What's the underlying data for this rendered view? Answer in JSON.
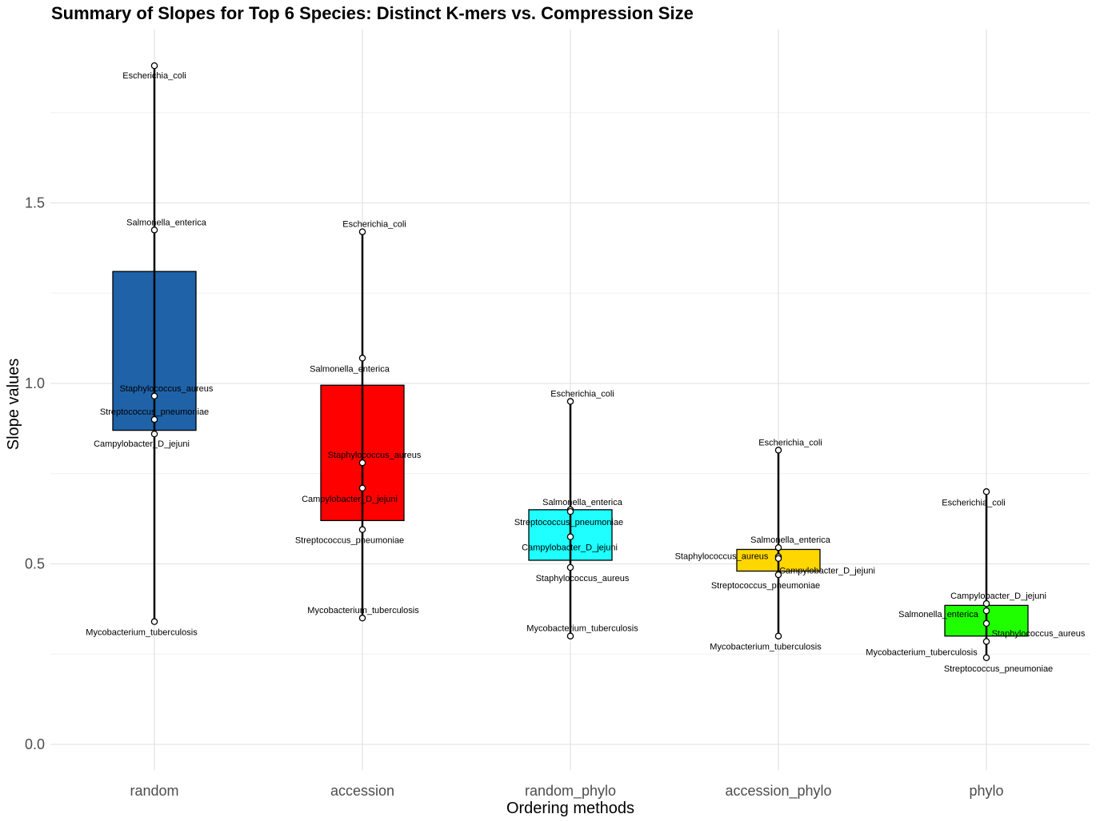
{
  "chart_data": {
    "type": "box",
    "title": "Summary of Slopes for Top 6 Species: Distinct K-mers vs. Compression Size",
    "xlabel": "Ordering methods",
    "ylabel": "Slope values",
    "categories": [
      "random",
      "accession",
      "random_phylo",
      "accession_phylo",
      "phylo"
    ],
    "ylim": [
      -0.07,
      1.98
    ],
    "yticks": [
      0.0,
      0.5,
      1.0,
      1.5
    ],
    "ytick_labels": [
      "0.0",
      "0.5",
      "1.0",
      "1.5"
    ],
    "grid": true,
    "box_colors": [
      "#1f62a8",
      "#ff0000",
      "#1fffff",
      "#ffd700",
      "#1fff00"
    ],
    "boxes": [
      {
        "category": "random",
        "min": 0.34,
        "q1": 0.87,
        "q3": 1.31,
        "max": 1.88
      },
      {
        "category": "accession",
        "min": 0.35,
        "q1": 0.62,
        "q3": 0.995,
        "max": 1.42
      },
      {
        "category": "random_phylo",
        "min": 0.3,
        "q1": 0.51,
        "q3": 0.65,
        "max": 0.95
      },
      {
        "category": "accession_phylo",
        "min": 0.3,
        "q1": 0.48,
        "q3": 0.54,
        "max": 0.815
      },
      {
        "category": "phylo",
        "min": 0.24,
        "q1": 0.3,
        "q3": 0.385,
        "max": 0.7
      }
    ],
    "points": [
      {
        "category": "random",
        "species": "Escherichia_coli",
        "value": 1.88,
        "label_dx": 0,
        "label_dy": 12
      },
      {
        "category": "random",
        "species": "Salmonella_enterica",
        "value": 1.425,
        "label_dx": 15,
        "label_dy": -10
      },
      {
        "category": "random",
        "species": "Staphylococcus_aureus",
        "value": 0.965,
        "label_dx": 15,
        "label_dy": -10
      },
      {
        "category": "random",
        "species": "Streptococcus_pneumoniae",
        "value": 0.9,
        "label_dx": 0,
        "label_dy": -10
      },
      {
        "category": "random",
        "species": "Campylobacter_D_jejuni",
        "value": 0.86,
        "label_dx": -16,
        "label_dy": 12
      },
      {
        "category": "random",
        "species": "Mycobacterium_tuberculosis",
        "value": 0.34,
        "label_dx": -16,
        "label_dy": 13
      },
      {
        "category": "accession",
        "species": "Escherichia_coli",
        "value": 1.42,
        "label_dx": 15,
        "label_dy": -10
      },
      {
        "category": "accession",
        "species": "Salmonella_enterica",
        "value": 1.07,
        "label_dx": -16,
        "label_dy": 13
      },
      {
        "category": "accession",
        "species": "Staphylococcus_aureus",
        "value": 0.78,
        "label_dx": 15,
        "label_dy": -10
      },
      {
        "category": "accession",
        "species": "Campylobacter_D_jejuni",
        "value": 0.71,
        "label_dx": -16,
        "label_dy": 13
      },
      {
        "category": "accession",
        "species": "Streptococcus_pneumoniae",
        "value": 0.595,
        "label_dx": -16,
        "label_dy": 13
      },
      {
        "category": "accession",
        "species": "Mycobacterium_tuberculosis",
        "value": 0.35,
        "label_dx": 1,
        "label_dy": -10
      },
      {
        "category": "random_phylo",
        "species": "Escherichia_coli",
        "value": 0.95,
        "label_dx": 15,
        "label_dy": -10
      },
      {
        "category": "random_phylo",
        "species": "Salmonella_enterica",
        "value": 0.65,
        "label_dx": 15,
        "label_dy": -10
      },
      {
        "category": "random_phylo",
        "species": "Streptococcus_pneumoniae",
        "value": 0.645,
        "label_dx": -2,
        "label_dy": 13
      },
      {
        "category": "random_phylo",
        "species": "Campylobacter_D_jejuni",
        "value": 0.575,
        "label_dx": -1,
        "label_dy": 13
      },
      {
        "category": "random_phylo",
        "species": "Staphylococcus_aureus",
        "value": 0.49,
        "label_dx": 15,
        "label_dy": 13
      },
      {
        "category": "random_phylo",
        "species": "Mycobacterium_tuberculosis",
        "value": 0.3,
        "label_dx": 15,
        "label_dy": -10
      },
      {
        "category": "accession_phylo",
        "species": "Escherichia_coli",
        "value": 0.815,
        "label_dx": 15,
        "label_dy": -10
      },
      {
        "category": "accession_phylo",
        "species": "Salmonella_enterica",
        "value": 0.545,
        "label_dx": 15,
        "label_dy": -10
      },
      {
        "category": "accession_phylo",
        "species": "Staphylococcus_aureus",
        "value": 0.52,
        "label_dx": -71,
        "label_dy": -1
      },
      {
        "category": "accession_phylo",
        "species": "Campylobacter_D_jejuni",
        "value": 0.515,
        "label_dx": 61,
        "label_dy": 15
      },
      {
        "category": "accession_phylo",
        "species": "Streptococcus_pneumoniae",
        "value": 0.47,
        "label_dx": -16,
        "label_dy": 13
      },
      {
        "category": "accession_phylo",
        "species": "Mycobacterium_tuberculosis",
        "value": 0.3,
        "label_dx": -16,
        "label_dy": 13
      },
      {
        "category": "phylo",
        "species": "Escherichia_coli",
        "value": 0.7,
        "label_dx": -16,
        "label_dy": 13
      },
      {
        "category": "phylo",
        "species": "Campylobacter_D_jejuni",
        "value": 0.39,
        "label_dx": 15,
        "label_dy": -10
      },
      {
        "category": "phylo",
        "species": "Salmonella_enterica",
        "value": 0.37,
        "label_dx": -60,
        "label_dy": 4
      },
      {
        "category": "phylo",
        "species": "Staphylococcus_aureus",
        "value": 0.335,
        "label_dx": 65,
        "label_dy": 12
      },
      {
        "category": "phylo",
        "species": "Mycobacterium_tuberculosis",
        "value": 0.285,
        "label_dx": -81,
        "label_dy": 13
      },
      {
        "category": "phylo",
        "species": "Streptococcus_pneumoniae",
        "value": 0.24,
        "label_dx": 15,
        "label_dy": 13
      }
    ]
  }
}
